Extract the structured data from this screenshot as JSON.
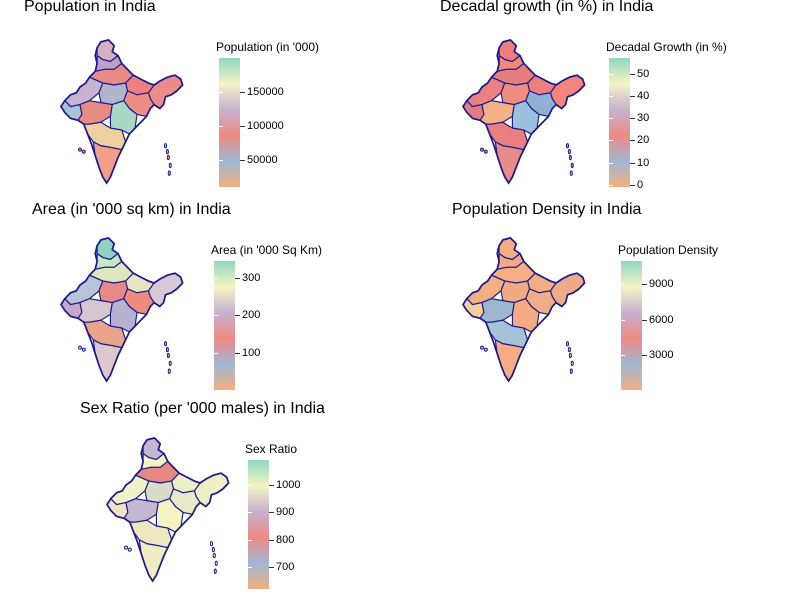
{
  "panels": [
    {
      "id": "population",
      "title": "Population in India",
      "legend_title": "Population (in '000)",
      "ticks": [
        {
          "value": 150000,
          "label": "150000"
        },
        {
          "value": 100000,
          "label": "100000"
        },
        {
          "value": 50000,
          "label": "50000"
        }
      ],
      "range": [
        10000,
        200000
      ],
      "region_colors": [
        "#d8b0c4",
        "#b9a3c9",
        "#e88a86",
        "#f08080",
        "#ec8c8a",
        "#c7b4d0",
        "#b0b5cf",
        "#ef8f83",
        "#a7c4d9",
        "#e98b85",
        "#a9d9c6",
        "#eed19f",
        "#f3a08b"
      ]
    },
    {
      "id": "decadal",
      "title": "Decadal growth (in %) in India",
      "legend_title": "Decadal Growth (in %)",
      "ticks": [
        {
          "value": 50,
          "label": "50"
        },
        {
          "value": 40,
          "label": "40"
        },
        {
          "value": 30,
          "label": "30"
        },
        {
          "value": 20,
          "label": "20"
        },
        {
          "value": 10,
          "label": "10"
        },
        {
          "value": 0,
          "label": "0"
        }
      ],
      "range": [
        -1,
        57
      ],
      "region_colors": [
        "#ef7f7c",
        "#f28a7c",
        "#e67e80",
        "#ee7f7d",
        "#f5857b",
        "#ec8280",
        "#f08d80",
        "#8fb1d4",
        "#e07d84",
        "#f4b089",
        "#9dc0df",
        "#ea7f7f",
        "#e98b88"
      ]
    },
    {
      "id": "area",
      "title": "Area (in '000 sq km) in India",
      "legend_title": "Area (in '000 Sq Km)",
      "ticks": [
        {
          "value": 300,
          "label": "300"
        },
        {
          "value": 200,
          "label": "200"
        },
        {
          "value": 100,
          "label": "100"
        }
      ],
      "range": [
        0,
        345
      ],
      "region_colors": [
        "#8fd2c0",
        "#c8e7c7",
        "#dfe5bf",
        "#e7e4c0",
        "#d8cad2",
        "#b9c4d6",
        "#e58a86",
        "#ee8a7f",
        "#c6a8cb",
        "#d5c7cf",
        "#b8b0cf",
        "#e9a48a",
        "#ddc8cb"
      ]
    },
    {
      "id": "density",
      "title": "Population Density in India",
      "legend_title": "Population Density",
      "ticks": [
        {
          "value": 9000,
          "label": "9000"
        },
        {
          "value": 6000,
          "label": "6000"
        },
        {
          "value": 3000,
          "label": "3000"
        }
      ],
      "range": [
        0,
        11000
      ],
      "region_colors": [
        "#f3ae83",
        "#f1aa81",
        "#f4b082",
        "#f2ad83",
        "#efab85",
        "#f3b083",
        "#f1aa83",
        "#f0ad86",
        "#f6cf9b",
        "#9fb6cf",
        "#f2ab82",
        "#a5c2d6",
        "#f4ad82"
      ]
    },
    {
      "id": "sexratio",
      "title": "Sex Ratio (per '000 males) in India",
      "legend_title": "Sex Ratio",
      "ticks": [
        {
          "value": 1000,
          "label": "1000"
        },
        {
          "value": 900,
          "label": "900"
        },
        {
          "value": 800,
          "label": "800"
        },
        {
          "value": 700,
          "label": "700"
        }
      ],
      "range": [
        620,
        1090
      ],
      "region_colors": [
        "#c2b8d2",
        "#f4f2c4",
        "#e88884",
        "#efefc7",
        "#eeeec7",
        "#f1f1c6",
        "#d9dcc6",
        "#e9e8c8",
        "#efe6c0",
        "#c3b7d2",
        "#f6f3c2",
        "#eee8be",
        "#f2edc0"
      ]
    }
  ],
  "colors": {
    "border": "#1a1a8c",
    "scale": [
      "#f4b07e",
      "#9fb7d4",
      "#f08a84",
      "#c7b1d1",
      "#f4f4c4",
      "#8fd8c0"
    ]
  }
}
